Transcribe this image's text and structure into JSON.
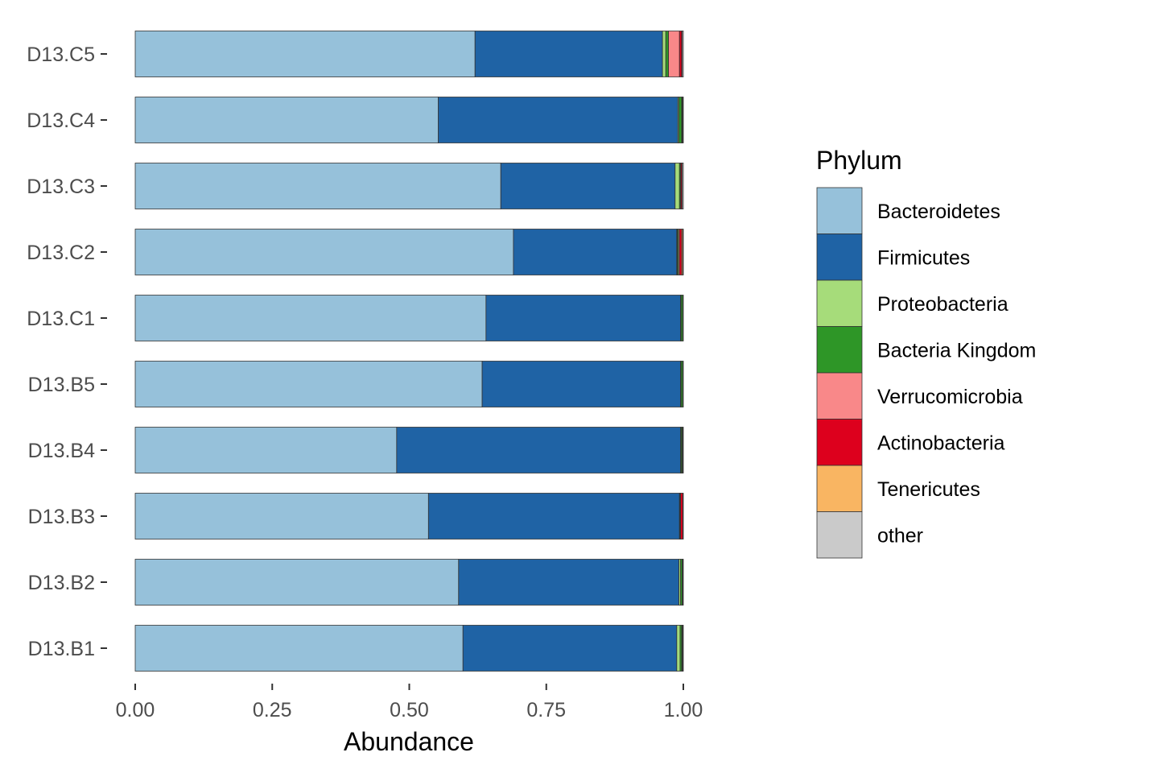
{
  "chart_data": {
    "type": "bar",
    "orientation": "horizontal",
    "stacked": true,
    "xlabel": "Abundance",
    "ylabel": "",
    "xlim": [
      0,
      1
    ],
    "xticks": [
      "0.00",
      "0.25",
      "0.50",
      "0.75",
      "1.00"
    ],
    "grid": false,
    "legend_position": "right",
    "legend_title": "Phylum",
    "categories": [
      "D13.C5",
      "D13.C4",
      "D13.C3",
      "D13.C2",
      "D13.C1",
      "D13.B5",
      "D13.B4",
      "D13.B3",
      "D13.B2",
      "D13.B1"
    ],
    "series": [
      {
        "name": "Bacteroidetes",
        "color": "#96c1da",
        "values": [
          0.62,
          0.553,
          0.667,
          0.69,
          0.64,
          0.633,
          0.477,
          0.535,
          0.59,
          0.598
        ]
      },
      {
        "name": "Firmicutes",
        "color": "#1f63a5",
        "values": [
          0.342,
          0.437,
          0.318,
          0.298,
          0.355,
          0.362,
          0.518,
          0.458,
          0.402,
          0.39
        ]
      },
      {
        "name": "Proteobacteria",
        "color": "#a6dc7a",
        "values": [
          0.006,
          0.002,
          0.008,
          0.001,
          0.001,
          0.001,
          0.001,
          0.001,
          0.003,
          0.006
        ]
      },
      {
        "name": "Bacteria Kingdom",
        "color": "#2e9627",
        "values": [
          0.005,
          0.005,
          0.002,
          0.002,
          0.003,
          0.003,
          0.002,
          0.001,
          0.003,
          0.003
        ]
      },
      {
        "name": "Verrucomicrobia",
        "color": "#f98889",
        "values": [
          0.02,
          0.0,
          0.0,
          0.002,
          0.0,
          0.0,
          0.0,
          0.0,
          0.0,
          0.0
        ]
      },
      {
        "name": "Actinobacteria",
        "color": "#dd001d",
        "values": [
          0.004,
          0.001,
          0.002,
          0.004,
          0.001,
          0.0,
          0.001,
          0.004,
          0.001,
          0.001
        ]
      },
      {
        "name": "Tenericutes",
        "color": "#f9b562",
        "values": [
          0.001,
          0.001,
          0.001,
          0.002,
          0.0,
          0.001,
          0.0,
          0.001,
          0.001,
          0.001
        ]
      },
      {
        "name": "other",
        "color": "#cacaca",
        "values": [
          0.002,
          0.001,
          0.002,
          0.001,
          0.0,
          0.0,
          0.001,
          0.0,
          0.0,
          0.001
        ]
      }
    ]
  }
}
